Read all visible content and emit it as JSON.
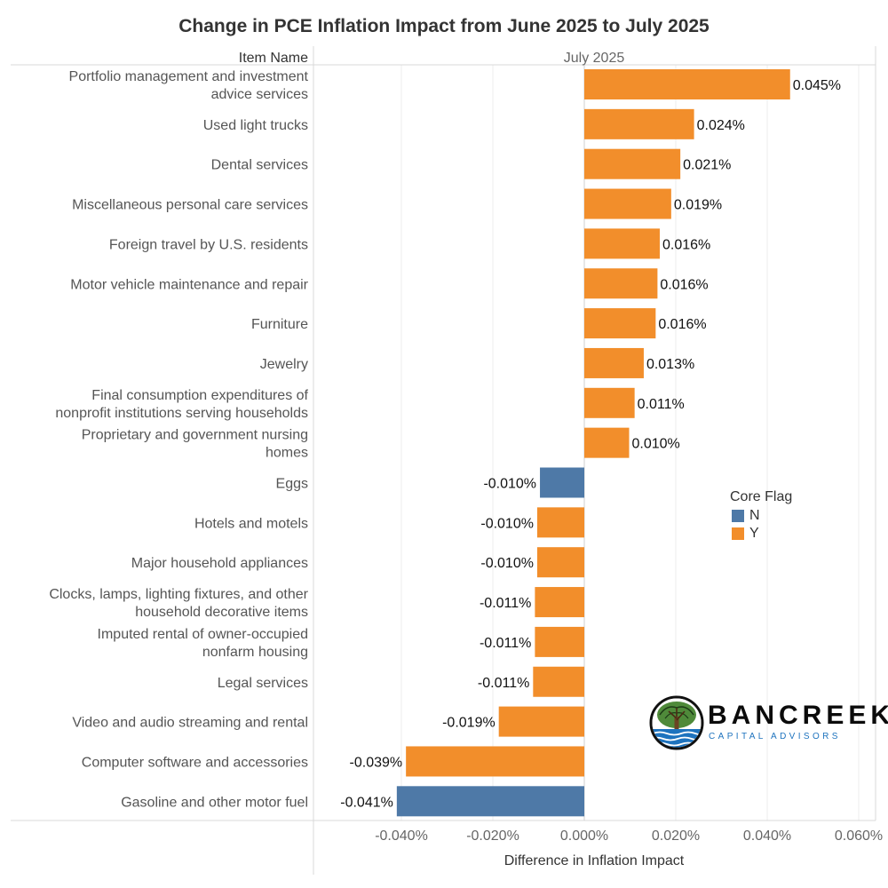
{
  "title": "Change in PCE Inflation Impact from June 2025 to July 2025",
  "colors": {
    "N": "#4e79a7",
    "Y": "#f28e2b",
    "grid": "#ececec",
    "axis_text": "#666666"
  },
  "chart_data": {
    "type": "bar",
    "orientation": "horizontal",
    "row_header": "Item Name",
    "column_header": "July 2025",
    "xlabel": "Difference in Inflation Impact",
    "xlim": [
      -0.058,
      0.062
    ],
    "xticks": [
      -0.04,
      -0.02,
      0.0,
      0.02,
      0.04,
      0.06
    ],
    "xtick_labels": [
      "-0.040%",
      "-0.020%",
      "0.000%",
      "0.020%",
      "0.040%",
      "0.060%"
    ],
    "grid": true,
    "legend": {
      "title": "Core Flag",
      "placement": "right",
      "entries": [
        "N",
        "Y"
      ]
    },
    "bars": [
      {
        "category": [
          "Portfolio management and investment",
          "advice services"
        ],
        "value": 0.045,
        "label": "0.045%",
        "core_flag": "Y"
      },
      {
        "category": [
          "Used light trucks"
        ],
        "value": 0.024,
        "label": "0.024%",
        "core_flag": "Y"
      },
      {
        "category": [
          "Dental services"
        ],
        "value": 0.021,
        "label": "0.021%",
        "core_flag": "Y"
      },
      {
        "category": [
          "Miscellaneous personal care services"
        ],
        "value": 0.019,
        "label": "0.019%",
        "core_flag": "Y"
      },
      {
        "category": [
          "Foreign travel by U.S. residents"
        ],
        "value": 0.0165,
        "label": "0.016%",
        "core_flag": "Y"
      },
      {
        "category": [
          "Motor vehicle maintenance and repair"
        ],
        "value": 0.016,
        "label": "0.016%",
        "core_flag": "Y"
      },
      {
        "category": [
          "Furniture"
        ],
        "value": 0.0156,
        "label": "0.016%",
        "core_flag": "Y"
      },
      {
        "category": [
          "Jewelry"
        ],
        "value": 0.013,
        "label": "0.013%",
        "core_flag": "Y"
      },
      {
        "category": [
          "Final consumption expenditures of",
          "nonprofit institutions serving households"
        ],
        "value": 0.011,
        "label": "0.011%",
        "core_flag": "Y"
      },
      {
        "category": [
          "Proprietary and government nursing",
          "homes"
        ],
        "value": 0.0098,
        "label": "0.010%",
        "core_flag": "Y"
      },
      {
        "category": [
          "Eggs"
        ],
        "value": -0.0097,
        "label": "-0.010%",
        "core_flag": "N"
      },
      {
        "category": [
          "Hotels and motels"
        ],
        "value": -0.0103,
        "label": "-0.010%",
        "core_flag": "Y"
      },
      {
        "category": [
          "Major household appliances"
        ],
        "value": -0.0103,
        "label": "-0.010%",
        "core_flag": "Y"
      },
      {
        "category": [
          "Clocks, lamps, lighting fixtures, and other",
          "household decorative items"
        ],
        "value": -0.0108,
        "label": "-0.011%",
        "core_flag": "Y"
      },
      {
        "category": [
          "Imputed rental of owner-occupied",
          "nonfarm housing"
        ],
        "value": -0.0108,
        "label": "-0.011%",
        "core_flag": "Y"
      },
      {
        "category": [
          "Legal services"
        ],
        "value": -0.0112,
        "label": "-0.011%",
        "core_flag": "Y"
      },
      {
        "category": [
          "Video and audio streaming and rental"
        ],
        "value": -0.0187,
        "label": "-0.019%",
        "core_flag": "Y"
      },
      {
        "category": [
          "Computer software and accessories"
        ],
        "value": -0.039,
        "label": "-0.039%",
        "core_flag": "Y"
      },
      {
        "category": [
          "Gasoline and other motor fuel"
        ],
        "value": -0.041,
        "label": "-0.041%",
        "core_flag": "N"
      }
    ]
  },
  "logo": {
    "name": "BANCREEK",
    "tagline": "CAPITAL ADVISORS",
    "icon": "tree-over-water-icon"
  }
}
